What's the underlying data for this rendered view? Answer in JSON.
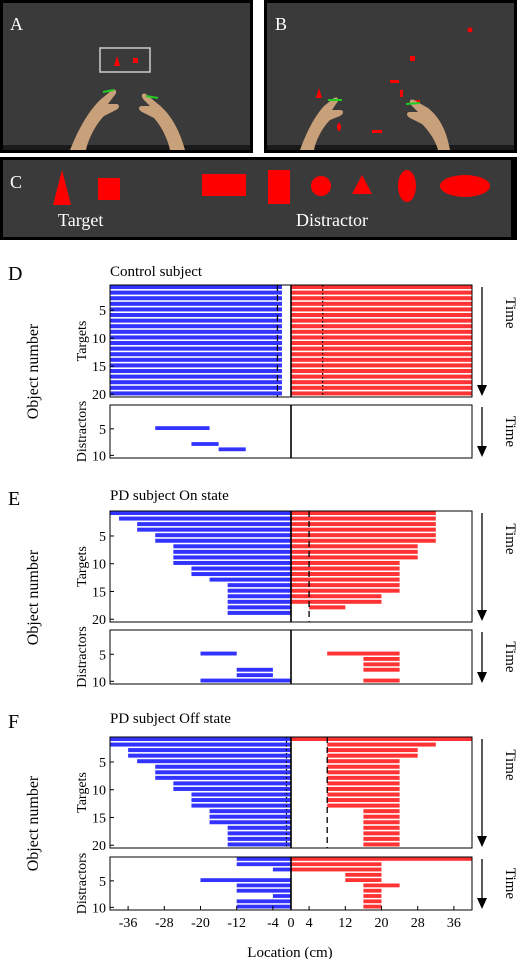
{
  "panels": {
    "A": "A",
    "B": "B",
    "C": "C",
    "D": "D",
    "E": "E",
    "F": "F"
  },
  "shape_panel": {
    "target_label": "Target",
    "distractor_label": "Distractor"
  },
  "colors": {
    "scene_bg": "#3a3a3a",
    "object": "#ff0000",
    "left_hand": "#3333ff",
    "right_hand": "#ff3333",
    "finger_marker": "#22cc22"
  },
  "chart_data": [
    {
      "type": "raster",
      "title": "Control subject",
      "xlabel": "Location (cm)",
      "ylabel": "Object number",
      "time_label": "Time",
      "xlim": [
        -40,
        40
      ],
      "xticks": [
        -36,
        -28,
        -20,
        -12,
        -4,
        0,
        4,
        12,
        20,
        28,
        36
      ],
      "targets": {
        "label": "Targets",
        "ylim": [
          0.5,
          20.5
        ],
        "yticks": [
          5,
          10,
          15,
          20
        ],
        "left_bars": [
          [
            1,
            -40,
            -2
          ],
          [
            2,
            -40,
            -2
          ],
          [
            3,
            -40,
            -2
          ],
          [
            4,
            -40,
            -2
          ],
          [
            5,
            -40,
            -2
          ],
          [
            6,
            -40,
            -2
          ],
          [
            7,
            -40,
            -2
          ],
          [
            8,
            -40,
            -2
          ],
          [
            9,
            -40,
            -2
          ],
          [
            10,
            -40,
            -2
          ],
          [
            11,
            -40,
            -2
          ],
          [
            12,
            -40,
            -2
          ],
          [
            13,
            -40,
            -2
          ],
          [
            14,
            -40,
            -2
          ],
          [
            15,
            -40,
            -2
          ],
          [
            16,
            -40,
            -2
          ],
          [
            17,
            -40,
            -2
          ],
          [
            18,
            -40,
            -2
          ],
          [
            19,
            -40,
            -2
          ],
          [
            20,
            -40,
            -2
          ]
        ],
        "right_bars": [
          [
            1,
            0,
            40
          ],
          [
            2,
            0,
            40
          ],
          [
            3,
            0,
            40
          ],
          [
            4,
            0,
            40
          ],
          [
            5,
            0,
            40
          ],
          [
            6,
            0,
            40
          ],
          [
            7,
            0,
            40
          ],
          [
            8,
            0,
            40
          ],
          [
            9,
            0,
            40
          ],
          [
            10,
            0,
            40
          ],
          [
            11,
            0,
            40
          ],
          [
            12,
            0,
            40
          ],
          [
            13,
            0,
            40
          ],
          [
            14,
            0,
            40
          ],
          [
            15,
            0,
            40
          ],
          [
            16,
            0,
            40
          ],
          [
            17,
            0,
            40
          ],
          [
            18,
            0,
            40
          ],
          [
            19,
            0,
            40
          ],
          [
            20,
            0,
            40
          ]
        ],
        "dashed_line_x": -3,
        "dotted_line_x": 7
      },
      "distractors": {
        "label": "Distractors",
        "ylim": [
          0.5,
          10.5
        ],
        "yticks": [
          5,
          10
        ],
        "left_bars": [
          [
            5,
            -30,
            -18
          ],
          [
            8,
            -22,
            -16
          ],
          [
            9,
            -16,
            -10
          ]
        ],
        "right_bars": []
      }
    },
    {
      "type": "raster",
      "title": "PD subject On state",
      "xlabel": "Location (cm)",
      "ylabel": "Object number",
      "time_label": "Time",
      "xlim": [
        -40,
        40
      ],
      "xticks": [
        -36,
        -28,
        -20,
        -12,
        -4,
        0,
        4,
        12,
        20,
        28,
        36
      ],
      "targets": {
        "label": "Targets",
        "ylim": [
          0.5,
          20.5
        ],
        "yticks": [
          5,
          10,
          15,
          20
        ],
        "left_bars": [
          [
            1,
            -40,
            0
          ],
          [
            2,
            -38,
            0
          ],
          [
            3,
            -34,
            0
          ],
          [
            4,
            -34,
            0
          ],
          [
            5,
            -30,
            0
          ],
          [
            6,
            -30,
            0
          ],
          [
            7,
            -26,
            0
          ],
          [
            8,
            -26,
            0
          ],
          [
            9,
            -26,
            0
          ],
          [
            10,
            -26,
            0
          ],
          [
            11,
            -22,
            0
          ],
          [
            12,
            -22,
            0
          ],
          [
            13,
            -18,
            0
          ],
          [
            14,
            -14,
            0
          ],
          [
            15,
            -14,
            0
          ],
          [
            16,
            -14,
            0
          ],
          [
            17,
            -14,
            0
          ],
          [
            18,
            -14,
            0
          ],
          [
            19,
            -14,
            0
          ]
        ],
        "right_bars": [
          [
            1,
            0,
            32
          ],
          [
            2,
            0,
            32
          ],
          [
            3,
            0,
            32
          ],
          [
            4,
            0,
            32
          ],
          [
            5,
            0,
            32
          ],
          [
            6,
            0,
            32
          ],
          [
            7,
            0,
            28
          ],
          [
            8,
            0,
            28
          ],
          [
            9,
            0,
            28
          ],
          [
            10,
            0,
            24
          ],
          [
            11,
            0,
            24
          ],
          [
            12,
            0,
            24
          ],
          [
            13,
            0,
            24
          ],
          [
            14,
            0,
            24
          ],
          [
            15,
            0,
            24
          ],
          [
            16,
            0,
            20
          ],
          [
            17,
            0,
            20
          ],
          [
            18,
            4,
            12
          ]
        ],
        "dashed_line_x": 4,
        "dotted_line_x": 0
      },
      "distractors": {
        "label": "Distractors",
        "ylim": [
          0.5,
          10.5
        ],
        "yticks": [
          5,
          10
        ],
        "left_bars": [
          [
            5,
            -20,
            -12
          ],
          [
            8,
            -12,
            -4
          ],
          [
            9,
            -12,
            -4
          ],
          [
            10,
            -20,
            0
          ]
        ],
        "right_bars": [
          [
            5,
            8,
            24
          ],
          [
            6,
            16,
            24
          ],
          [
            7,
            16,
            24
          ],
          [
            8,
            16,
            24
          ],
          [
            10,
            16,
            24
          ]
        ]
      }
    },
    {
      "type": "raster",
      "title": "PD subject Off state",
      "xlabel": "Location (cm)",
      "ylabel": "Object number",
      "time_label": "Time",
      "xlim": [
        -40,
        40
      ],
      "xticks": [
        -36,
        -28,
        -20,
        -12,
        -4,
        0,
        4,
        12,
        20,
        28,
        36
      ],
      "targets": {
        "label": "Targets",
        "ylim": [
          0.5,
          20.5
        ],
        "yticks": [
          5,
          10,
          15,
          20
        ],
        "left_bars": [
          [
            1,
            -40,
            0
          ],
          [
            2,
            -40,
            0
          ],
          [
            3,
            -36,
            0
          ],
          [
            4,
            -36,
            0
          ],
          [
            5,
            -34,
            0
          ],
          [
            6,
            -30,
            0
          ],
          [
            7,
            -30,
            0
          ],
          [
            8,
            -30,
            0
          ],
          [
            9,
            -26,
            0
          ],
          [
            10,
            -26,
            0
          ],
          [
            11,
            -22,
            0
          ],
          [
            12,
            -22,
            0
          ],
          [
            13,
            -22,
            0
          ],
          [
            14,
            -18,
            0
          ],
          [
            15,
            -18,
            0
          ],
          [
            16,
            -18,
            0
          ],
          [
            17,
            -14,
            0
          ],
          [
            18,
            -14,
            0
          ],
          [
            19,
            -14,
            0
          ],
          [
            20,
            -14,
            0
          ]
        ],
        "right_bars": [
          [
            1,
            0,
            40
          ],
          [
            2,
            8,
            32
          ],
          [
            3,
            8,
            28
          ],
          [
            4,
            8,
            28
          ],
          [
            5,
            8,
            24
          ],
          [
            6,
            8,
            24
          ],
          [
            7,
            8,
            24
          ],
          [
            8,
            8,
            24
          ],
          [
            9,
            8,
            24
          ],
          [
            10,
            8,
            24
          ],
          [
            11,
            8,
            24
          ],
          [
            12,
            8,
            24
          ],
          [
            13,
            8,
            24
          ],
          [
            14,
            16,
            24
          ],
          [
            15,
            16,
            24
          ],
          [
            16,
            16,
            24
          ],
          [
            17,
            16,
            24
          ],
          [
            18,
            16,
            24
          ],
          [
            19,
            16,
            24
          ],
          [
            20,
            16,
            24
          ]
        ],
        "dashed_line_x": 8,
        "dotted_line_x": -1
      },
      "distractors": {
        "label": "Distractors",
        "ylim": [
          0.5,
          10.5
        ],
        "yticks": [
          5,
          10
        ],
        "left_bars": [
          [
            1,
            -12,
            0
          ],
          [
            2,
            -12,
            0
          ],
          [
            3,
            -4,
            0
          ],
          [
            5,
            -20,
            0
          ],
          [
            6,
            -12,
            0
          ],
          [
            7,
            -12,
            0
          ],
          [
            8,
            -4,
            0
          ],
          [
            9,
            -12,
            0
          ],
          [
            10,
            -12,
            0
          ]
        ],
        "right_bars": [
          [
            1,
            0,
            40
          ],
          [
            2,
            0,
            20
          ],
          [
            3,
            0,
            20
          ],
          [
            4,
            12,
            20
          ],
          [
            5,
            12,
            20
          ],
          [
            6,
            16,
            24
          ],
          [
            7,
            16,
            20
          ],
          [
            8,
            16,
            20
          ],
          [
            9,
            16,
            20
          ],
          [
            10,
            16,
            20
          ]
        ]
      }
    }
  ]
}
